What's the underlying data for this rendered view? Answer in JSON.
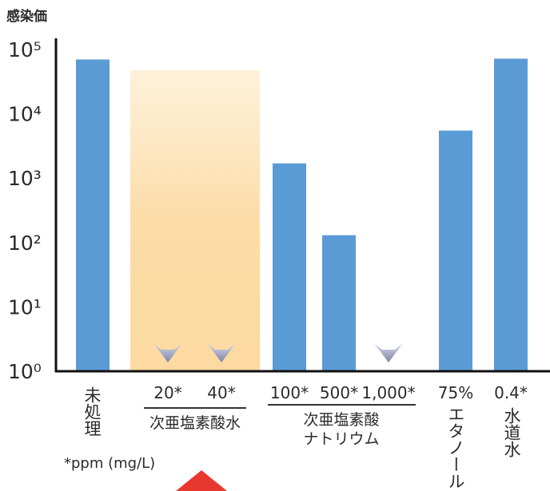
{
  "chart_data": {
    "type": "bar",
    "ylabel": "感染価",
    "yscale": "log",
    "yticks": [
      "10⁰",
      "10¹",
      "10²",
      "10³",
      "10⁴",
      "10⁵"
    ],
    "ylim": [
      1,
      100000
    ],
    "bars": [
      {
        "label": "未処理",
        "group": "",
        "value": 70000
      },
      {
        "label": "20*",
        "group": "次亜塩素酸水",
        "value": 1,
        "below_detection": true
      },
      {
        "label": "40*",
        "group": "次亜塩素酸水",
        "value": 1,
        "below_detection": true
      },
      {
        "label": "100*",
        "group": "次亜塩素酸ナトリウム",
        "value": 1700
      },
      {
        "label": "500*",
        "group": "次亜塩素酸ナトリウム",
        "value": 130
      },
      {
        "label": "1,000*",
        "group": "次亜塩素酸ナトリウム",
        "value": 1,
        "below_detection": true
      },
      {
        "label": "75%",
        "group": "エタノール",
        "value": 5500
      },
      {
        "label": "0.4*",
        "group": "水道水",
        "value": 72000
      }
    ],
    "groups": [
      {
        "name": "次亜塩素酸水",
        "lines": [
          "次亜塩素酸水"
        ]
      },
      {
        "name": "次亜塩素酸ナトリウム",
        "lines": [
          "次亜塩素酸",
          "ナトリウム"
        ]
      }
    ],
    "vertical_labels": [
      "未処理",
      "エタノール",
      "水道水"
    ],
    "footnote": "*ppm (mg/L)",
    "bar_color": "#5b9bd5",
    "highlight_color": "#fbd89a",
    "arrow_color": "#8a8fb5"
  }
}
